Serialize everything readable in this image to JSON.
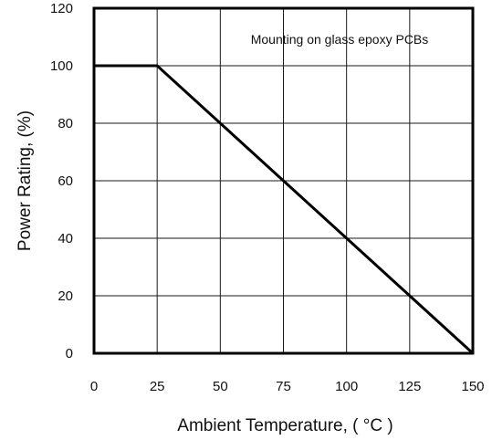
{
  "chart_data": {
    "type": "line",
    "title": "",
    "xlabel": "Ambient Temperature, ( °C )",
    "ylabel": "Power Rating, (%)",
    "xlim": [
      0,
      150
    ],
    "ylim": [
      0,
      120
    ],
    "x_ticks": [
      0,
      25,
      50,
      75,
      100,
      125,
      150
    ],
    "y_ticks": [
      0,
      20,
      40,
      60,
      80,
      100,
      120
    ],
    "grid": true,
    "annotation": "Mounting on glass epoxy PCBs",
    "series": [
      {
        "x": [
          0,
          25,
          150
        ],
        "y": [
          100,
          100,
          0
        ]
      }
    ],
    "colors": {
      "line": "#000000",
      "grid": "#1a1a1a",
      "frame": "#000000"
    }
  }
}
